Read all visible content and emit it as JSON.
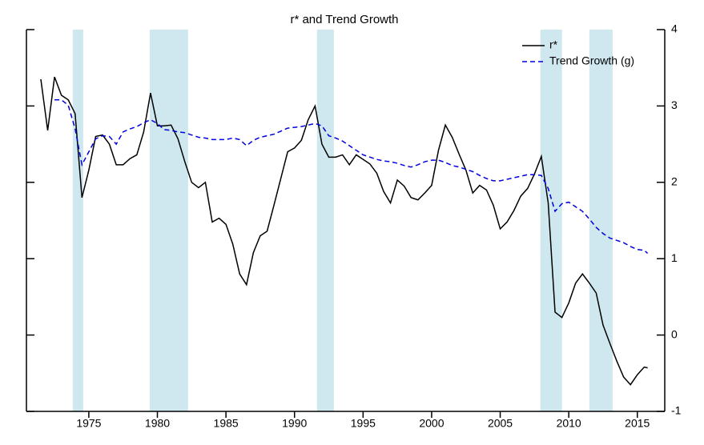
{
  "chart_data": {
    "type": "line",
    "title": "r* and Trend Growth",
    "x": [
      1971.5,
      1972.0,
      1972.5,
      1973.0,
      1973.5,
      1974.0,
      1974.5,
      1975.0,
      1975.5,
      1976.0,
      1976.5,
      1977.0,
      1977.5,
      1978.0,
      1978.5,
      1979.0,
      1979.5,
      1980.0,
      1980.5,
      1981.0,
      1981.5,
      1982.0,
      1982.5,
      1983.0,
      1983.5,
      1984.0,
      1984.5,
      1985.0,
      1985.5,
      1986.0,
      1986.5,
      1987.0,
      1987.5,
      1988.0,
      1988.5,
      1989.0,
      1989.5,
      1990.0,
      1990.5,
      1991.0,
      1991.5,
      1992.0,
      1992.5,
      1993.0,
      1993.5,
      1994.0,
      1994.5,
      1995.0,
      1995.5,
      1996.0,
      1996.5,
      1997.0,
      1997.5,
      1998.0,
      1998.5,
      1999.0,
      1999.5,
      2000.0,
      2000.5,
      2001.0,
      2001.5,
      2002.0,
      2002.5,
      2003.0,
      2003.5,
      2004.0,
      2004.5,
      2005.0,
      2005.5,
      2006.0,
      2006.5,
      2007.0,
      2007.5,
      2008.0,
      2008.5,
      2009.0,
      2009.5,
      2010.0,
      2010.5,
      2011.0,
      2011.5,
      2012.0,
      2012.5,
      2013.0,
      2013.5,
      2014.0,
      2014.5,
      2015.0,
      2015.5,
      2015.75
    ],
    "series": [
      {
        "name": "r*",
        "color": "#000000",
        "dash": false,
        "values": [
          3.35,
          2.68,
          3.38,
          3.14,
          3.08,
          2.9,
          1.8,
          2.16,
          2.6,
          2.62,
          2.5,
          2.23,
          2.23,
          2.31,
          2.36,
          2.66,
          3.17,
          2.74,
          2.74,
          2.75,
          2.57,
          2.27,
          2.0,
          1.93,
          2.0,
          1.48,
          1.53,
          1.45,
          1.19,
          0.8,
          0.66,
          1.08,
          1.3,
          1.36,
          1.7,
          2.05,
          2.4,
          2.45,
          2.55,
          2.82,
          3.0,
          2.5,
          2.33,
          2.33,
          2.36,
          2.23,
          2.36,
          2.3,
          2.24,
          2.12,
          1.88,
          1.73,
          2.03,
          1.95,
          1.8,
          1.77,
          1.86,
          1.96,
          2.42,
          2.75,
          2.59,
          2.37,
          2.16,
          1.86,
          1.96,
          1.9,
          1.7,
          1.39,
          1.48,
          1.63,
          1.82,
          1.92,
          2.11,
          2.34,
          1.73,
          0.3,
          0.23,
          0.42,
          0.68,
          0.8,
          0.68,
          0.55,
          0.13,
          -0.11,
          -0.34,
          -0.55,
          -0.65,
          -0.52,
          -0.42,
          -0.43
        ]
      },
      {
        "name": "Trend Growth (g)",
        "color": "#0000e0",
        "dash": true,
        "values": [
          null,
          null,
          3.08,
          3.08,
          3.01,
          2.7,
          2.23,
          2.4,
          2.57,
          2.61,
          2.6,
          2.5,
          2.66,
          2.7,
          2.73,
          2.78,
          2.82,
          2.77,
          2.69,
          2.68,
          2.66,
          2.65,
          2.62,
          2.59,
          2.58,
          2.56,
          2.56,
          2.56,
          2.58,
          2.56,
          2.48,
          2.55,
          2.59,
          2.61,
          2.63,
          2.67,
          2.71,
          2.72,
          2.73,
          2.75,
          2.77,
          2.74,
          2.61,
          2.58,
          2.54,
          2.48,
          2.42,
          2.36,
          2.33,
          2.3,
          2.28,
          2.27,
          2.25,
          2.22,
          2.2,
          2.23,
          2.27,
          2.29,
          2.29,
          2.26,
          2.22,
          2.2,
          2.17,
          2.14,
          2.09,
          2.05,
          2.02,
          2.02,
          2.04,
          2.06,
          2.08,
          2.1,
          2.1,
          2.09,
          1.92,
          1.62,
          1.72,
          1.74,
          1.68,
          1.62,
          1.52,
          1.41,
          1.33,
          1.27,
          1.24,
          1.21,
          1.16,
          1.12,
          1.11,
          1.07
        ]
      }
    ],
    "recessions": [
      [
        1973.83,
        1974.59
      ],
      [
        1979.44,
        1982.24
      ],
      [
        1991.64,
        1992.87
      ],
      [
        2007.93,
        2009.51
      ],
      [
        2011.5,
        2013.2
      ]
    ],
    "shade_color": "#cfe8ef",
    "xlim": [
      1970.45,
      2017.0
    ],
    "xticks": [
      1975,
      1980,
      1985,
      1990,
      1995,
      2000,
      2005,
      2010,
      2015
    ],
    "ylim": [
      -1,
      4
    ],
    "yticks": [
      -1,
      0,
      1,
      2,
      3,
      4
    ],
    "legend": "upper right"
  }
}
